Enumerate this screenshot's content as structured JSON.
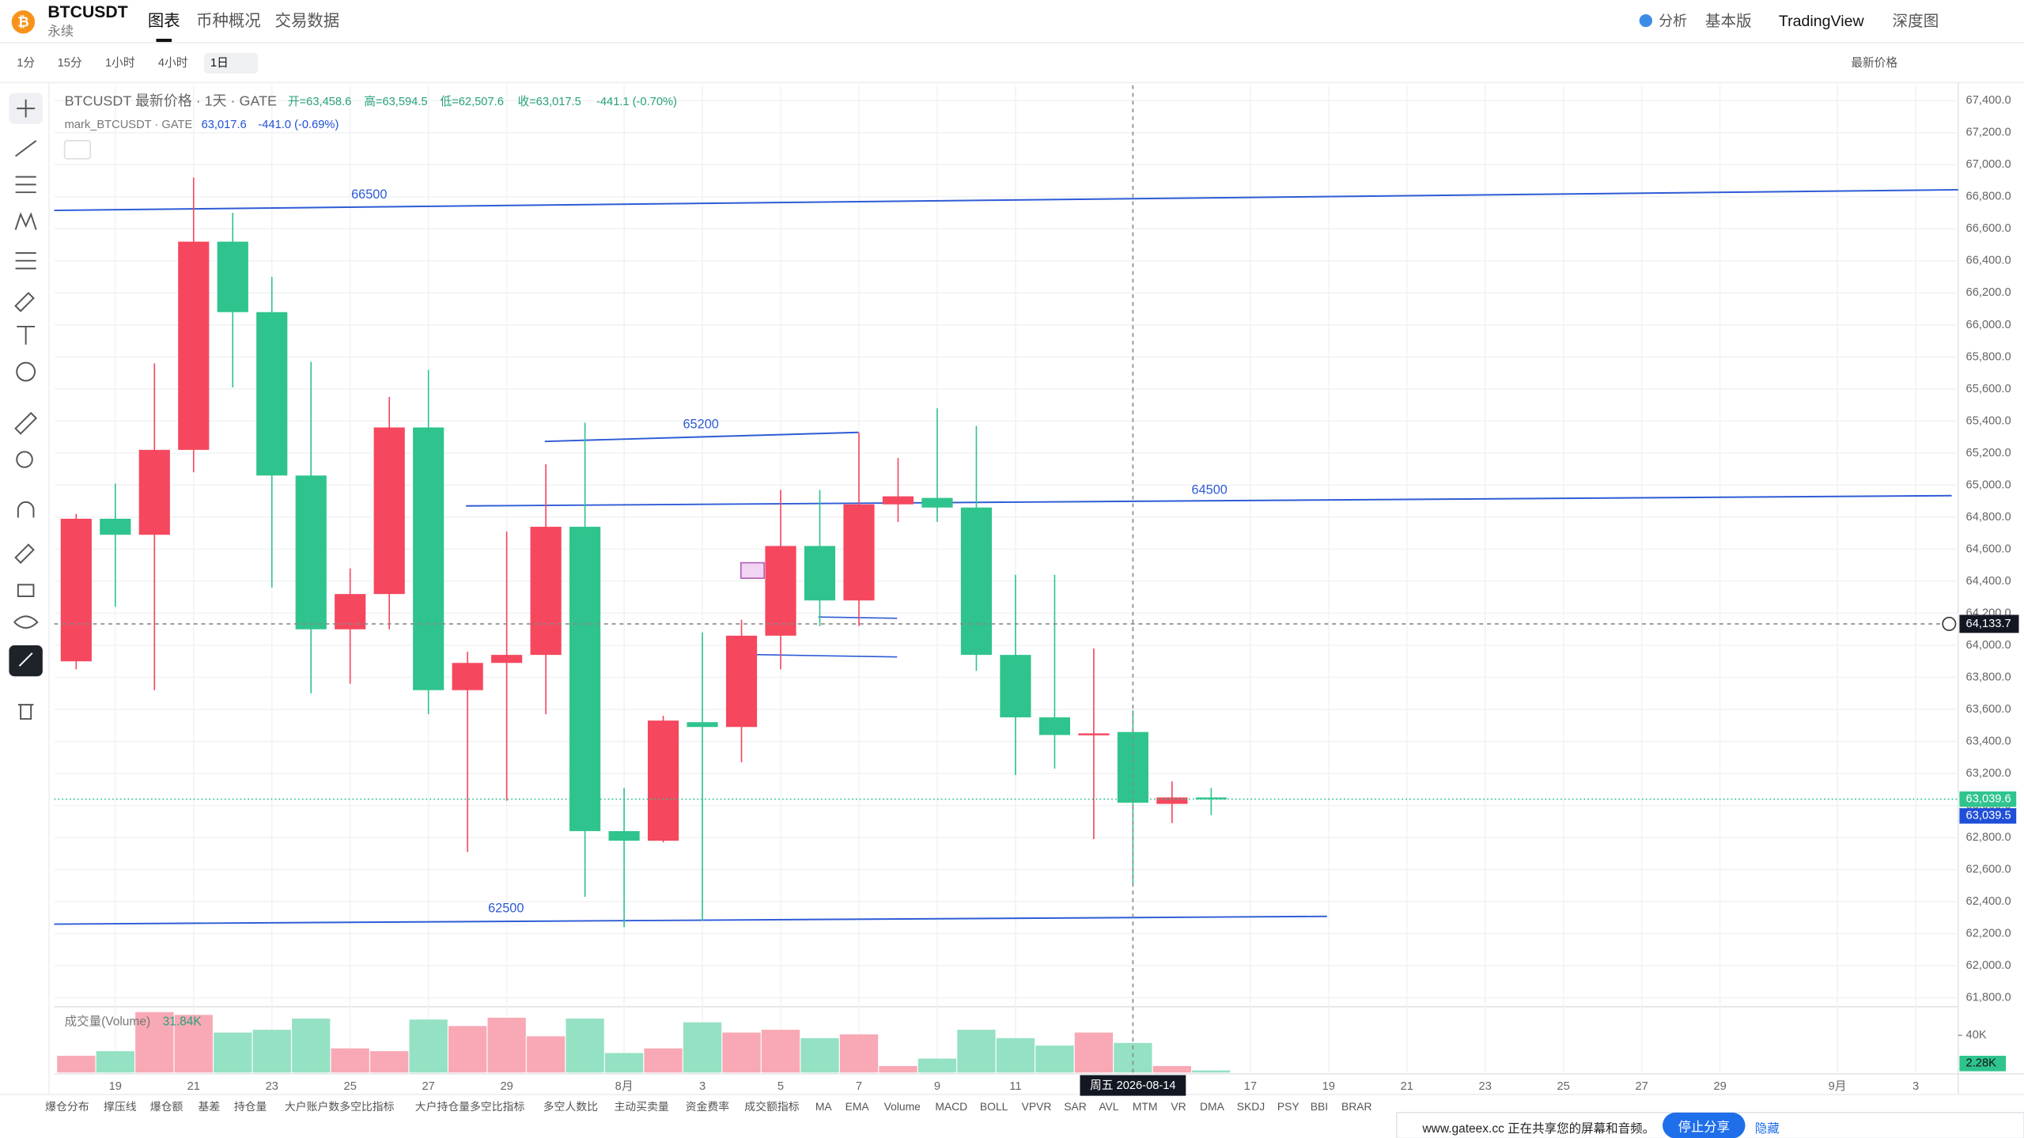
{
  "top_bar": {
    "symbol": "BTCUSDT",
    "contract": "永续",
    "tabs": [
      "图表",
      "币种概况",
      "交易数据"
    ],
    "right_links": [
      "分析",
      "基本版",
      "TradingView",
      "深度图"
    ]
  },
  "toolbar": {
    "intervals": [
      "1分",
      "15分",
      "1小时",
      "4小时",
      "1日"
    ],
    "price_source": "最新价格"
  },
  "legend": {
    "main": "BTCUSDT 最新价格 · 1天 · GATE",
    "open": "开=63,458.6",
    "high": "高=63,594.5",
    "low": "低=62,507.6",
    "close": "收=63,017.5",
    "change": "-441.1 (-0.70%)",
    "mark_name": "mark_BTCUSDT · GATE",
    "mark_value": "63,017.6",
    "mark_change": "-441.0 (-0.69%)",
    "volume_name": "成交量(Volume)",
    "volume_value": "31.84K"
  },
  "chart_data": {
    "type": "candlestick",
    "x": [
      "2026-07-18",
      "2026-07-19",
      "2026-07-20",
      "2026-07-21",
      "2026-07-22",
      "2026-07-23",
      "2026-07-24",
      "2026-07-25",
      "2026-07-26",
      "2026-07-27",
      "2026-07-28",
      "2026-07-29",
      "2026-07-30",
      "2026-07-31",
      "2026-08-01",
      "2026-08-02",
      "2026-08-03",
      "2026-08-04",
      "2026-08-05",
      "2026-08-06",
      "2026-08-07",
      "2026-08-08",
      "2026-08-09",
      "2026-08-10",
      "2026-08-11",
      "2026-08-12",
      "2026-08-13",
      "2026-08-14",
      "2026-08-15",
      "2026-08-16"
    ],
    "open": [
      63900,
      64790,
      64690,
      65220,
      66520,
      66080,
      65060,
      64100,
      64320,
      65360,
      63720,
      63890,
      63940,
      64740,
      62840,
      62780,
      63520,
      63490,
      64060,
      64620,
      64280,
      64880,
      64920,
      64860,
      63940,
      63550,
      63440,
      63458.6,
      63010,
      63050
    ],
    "high": [
      64820,
      65010,
      65760,
      66920,
      66700,
      66300,
      65770,
      64480,
      65550,
      65720,
      63960,
      64710,
      65130,
      65390,
      63110,
      63560,
      64080,
      64160,
      64970,
      64970,
      65330,
      65170,
      65480,
      65370,
      64440,
      64440,
      63980,
      63594.5,
      63150,
      63110
    ],
    "low": [
      63850,
      64240,
      63720,
      65080,
      65610,
      64360,
      63700,
      63760,
      64100,
      63570,
      62710,
      63030,
      63570,
      62430,
      62240,
      62770,
      62280,
      63270,
      63850,
      64120,
      64120,
      64770,
      64770,
      63840,
      63190,
      63230,
      62790,
      62507.6,
      62890,
      62940
    ],
    "close": [
      64790,
      64690,
      65220,
      66520,
      66080,
      65060,
      64100,
      64320,
      65360,
      63720,
      63890,
      63940,
      64740,
      62840,
      62780,
      63530,
      63490,
      64060,
      64620,
      64280,
      64880,
      64930,
      64860,
      63940,
      63550,
      63440,
      63450,
      63017.5,
      63050,
      63039.5
    ],
    "up_color": "#f5475e",
    "down_color": "#2fc48d",
    "xlim": [
      "2026-07-17",
      "2026-09-04"
    ],
    "xticks": [
      {
        "value": "2026-07-19",
        "label": "19"
      },
      {
        "value": "2026-07-21",
        "label": "21"
      },
      {
        "value": "2026-07-23",
        "label": "23"
      },
      {
        "value": "2026-07-25",
        "label": "25"
      },
      {
        "value": "2026-07-27",
        "label": "27"
      },
      {
        "value": "2026-07-29",
        "label": "29"
      },
      {
        "value": "2026-08-01",
        "label": "8月"
      },
      {
        "value": "2026-08-03",
        "label": "3"
      },
      {
        "value": "2026-08-05",
        "label": "5"
      },
      {
        "value": "2026-08-07",
        "label": "7"
      },
      {
        "value": "2026-08-09",
        "label": "9"
      },
      {
        "value": "2026-08-11",
        "label": "11"
      },
      {
        "value": "2026-08-17",
        "label": "17"
      },
      {
        "value": "2026-08-19",
        "label": "19"
      },
      {
        "value": "2026-08-21",
        "label": "21"
      },
      {
        "value": "2026-08-23",
        "label": "23"
      },
      {
        "value": "2026-08-25",
        "label": "25"
      },
      {
        "value": "2026-08-27",
        "label": "27"
      },
      {
        "value": "2026-08-29",
        "label": "29"
      },
      {
        "value": "2026-09-01",
        "label": "9月"
      },
      {
        "value": "2026-09-03",
        "label": "3"
      }
    ],
    "ylim": [
      61800,
      67400
    ],
    "yticks": [
      {
        "value": 61800,
        "label": "61,800.0"
      },
      {
        "value": 62000,
        "label": "62,000.0"
      },
      {
        "value": 62200,
        "label": "62,200.0"
      },
      {
        "value": 62400,
        "label": "62,400.0"
      },
      {
        "value": 62600,
        "label": "62,600.0"
      },
      {
        "value": 62800,
        "label": "62,800.0"
      },
      {
        "value": 63000,
        "label": "63,000.0"
      },
      {
        "value": 63200,
        "label": "63,200.0"
      },
      {
        "value": 63400,
        "label": "63,400.0"
      },
      {
        "value": 63600,
        "label": "63,600.0"
      },
      {
        "value": 63800,
        "label": "63,800.0"
      },
      {
        "value": 64000,
        "label": "64,000.0"
      },
      {
        "value": 64200,
        "label": "64,200.0"
      },
      {
        "value": 64400,
        "label": "64,400.0"
      },
      {
        "value": 64600,
        "label": "64,600.0"
      },
      {
        "value": 64800,
        "label": "64,800.0"
      },
      {
        "value": 65000,
        "label": "65,000.0"
      },
      {
        "value": 65200,
        "label": "65,200.0"
      },
      {
        "value": 65400,
        "label": "65,400.0"
      },
      {
        "value": 65600,
        "label": "65,600.0"
      },
      {
        "value": 65800,
        "label": "65,800.0"
      },
      {
        "value": 66000,
        "label": "66,000.0"
      },
      {
        "value": 66200,
        "label": "66,200.0"
      },
      {
        "value": 66400,
        "label": "66,400.0"
      },
      {
        "value": 66600,
        "label": "66,600.0"
      },
      {
        "value": 66800,
        "label": "66,800.0"
      },
      {
        "value": 67000,
        "label": "67,000.0"
      },
      {
        "value": 67200,
        "label": "67,200.0"
      },
      {
        "value": 67400,
        "label": "67,400.0"
      }
    ],
    "grid": true,
    "trend_lines": [
      {
        "label": "66500"
      },
      {
        "label": "65200"
      },
      {
        "label": "64500"
      },
      {
        "label": "62500"
      }
    ],
    "crosshair": {
      "date": "2026-08-14",
      "date_label": "周五 2026-08-14",
      "price": 64133.7,
      "price_label": "64,133.7"
    },
    "last_price": [
      {
        "value": 63039.6,
        "label": "63,039.6"
      },
      {
        "value": 63039.5,
        "label": "63,039.5"
      }
    ],
    "volume": {
      "values": [
        18000,
        23000,
        65000,
        62000,
        43000,
        46000,
        58000,
        26000,
        23000,
        57000,
        50000,
        59000,
        39000,
        58000,
        21000,
        26000,
        54000,
        43000,
        46000,
        37000,
        41000,
        7000,
        15000,
        46000,
        37000,
        29000,
        43000,
        31840,
        7000,
        2280
      ],
      "up_color": "#f8a9b5",
      "down_color": "#95e1c3",
      "ylim": [
        0,
        68000
      ],
      "yticks": [
        {
          "value": 40000,
          "label": "40K"
        }
      ],
      "last": {
        "value": 2280,
        "label": "2.28K"
      }
    }
  },
  "indicator_tabs": [
    "爆仓分布",
    "撑压线",
    "爆仓额",
    "基差",
    "持仓量",
    "大户账户数多空比指标",
    "大户持仓量多空比指标",
    "多空人数比",
    "主动买卖量",
    "资金费率",
    "成交额指标",
    "MA",
    "EMA",
    "Volume",
    "MACD",
    "BOLL",
    "VPVR",
    "SAR",
    "AVL",
    "MTM",
    "VR",
    "DMA",
    "SKDJ",
    "PSY",
    "BBI",
    "BRAR"
  ],
  "share_banner": {
    "message": "www.gateex.cc 正在共享您的屏幕和音频。",
    "stop": "停止分享",
    "hide": "隐藏"
  }
}
